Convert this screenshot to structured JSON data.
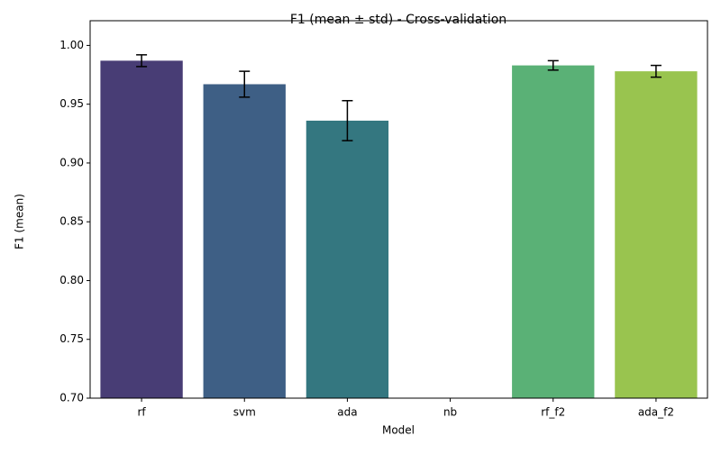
{
  "chart_data": {
    "type": "bar",
    "title": "F1 (mean ± std) - Cross-validation",
    "x_label": "Model",
    "y_label": "F1 (mean)",
    "categories": [
      "rf",
      "svm",
      "ada",
      "nb",
      "rf_f2",
      "ada_f2"
    ],
    "values": [
      0.987,
      0.967,
      0.936,
      null,
      0.983,
      0.978
    ],
    "errors": [
      0.005,
      0.011,
      0.017,
      null,
      0.004,
      0.005
    ],
    "colors": [
      "#483d75",
      "#3e5f85",
      "#347780",
      null,
      "#5ab176",
      "#99c44f"
    ],
    "ylim": [
      0.7,
      1.021
    ],
    "yticks": [
      {
        "value": 0.7,
        "label": "0.70"
      },
      0.75,
      {
        "value": 0.8,
        "label": "0.80"
      },
      0.85,
      {
        "value": 0.9,
        "label": "0.90"
      },
      0.95,
      {
        "value": 1.0,
        "label": "1.00"
      }
    ],
    "grid": false
  }
}
